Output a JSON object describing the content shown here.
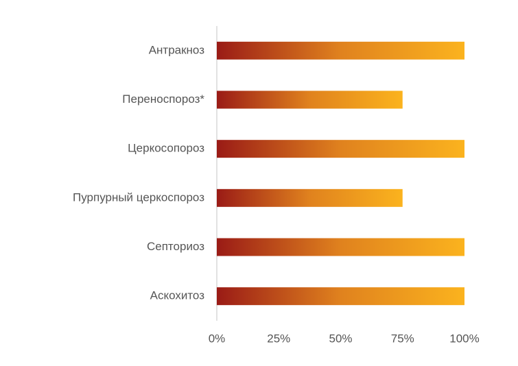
{
  "chart_data": {
    "type": "hbar",
    "categories": [
      "Антракноз",
      "Переноспороз*",
      "Церкосопороз",
      "Пурпурный церкоспороз",
      "Септориоз",
      "Аскохитоз"
    ],
    "values": [
      100,
      75,
      100,
      75,
      100,
      100
    ],
    "colors": [
      "#9a1b16",
      "#e0821e",
      "#fbb31e"
    ],
    "xlim": [
      0,
      100
    ],
    "xticks": [
      {
        "value": 0,
        "label": "0%"
      },
      {
        "value": 25,
        "label": "25%"
      },
      {
        "value": 50,
        "label": "50%"
      },
      {
        "value": 75,
        "label": "75%"
      },
      {
        "value": 100,
        "label": "100%"
      }
    ],
    "grid": false
  }
}
